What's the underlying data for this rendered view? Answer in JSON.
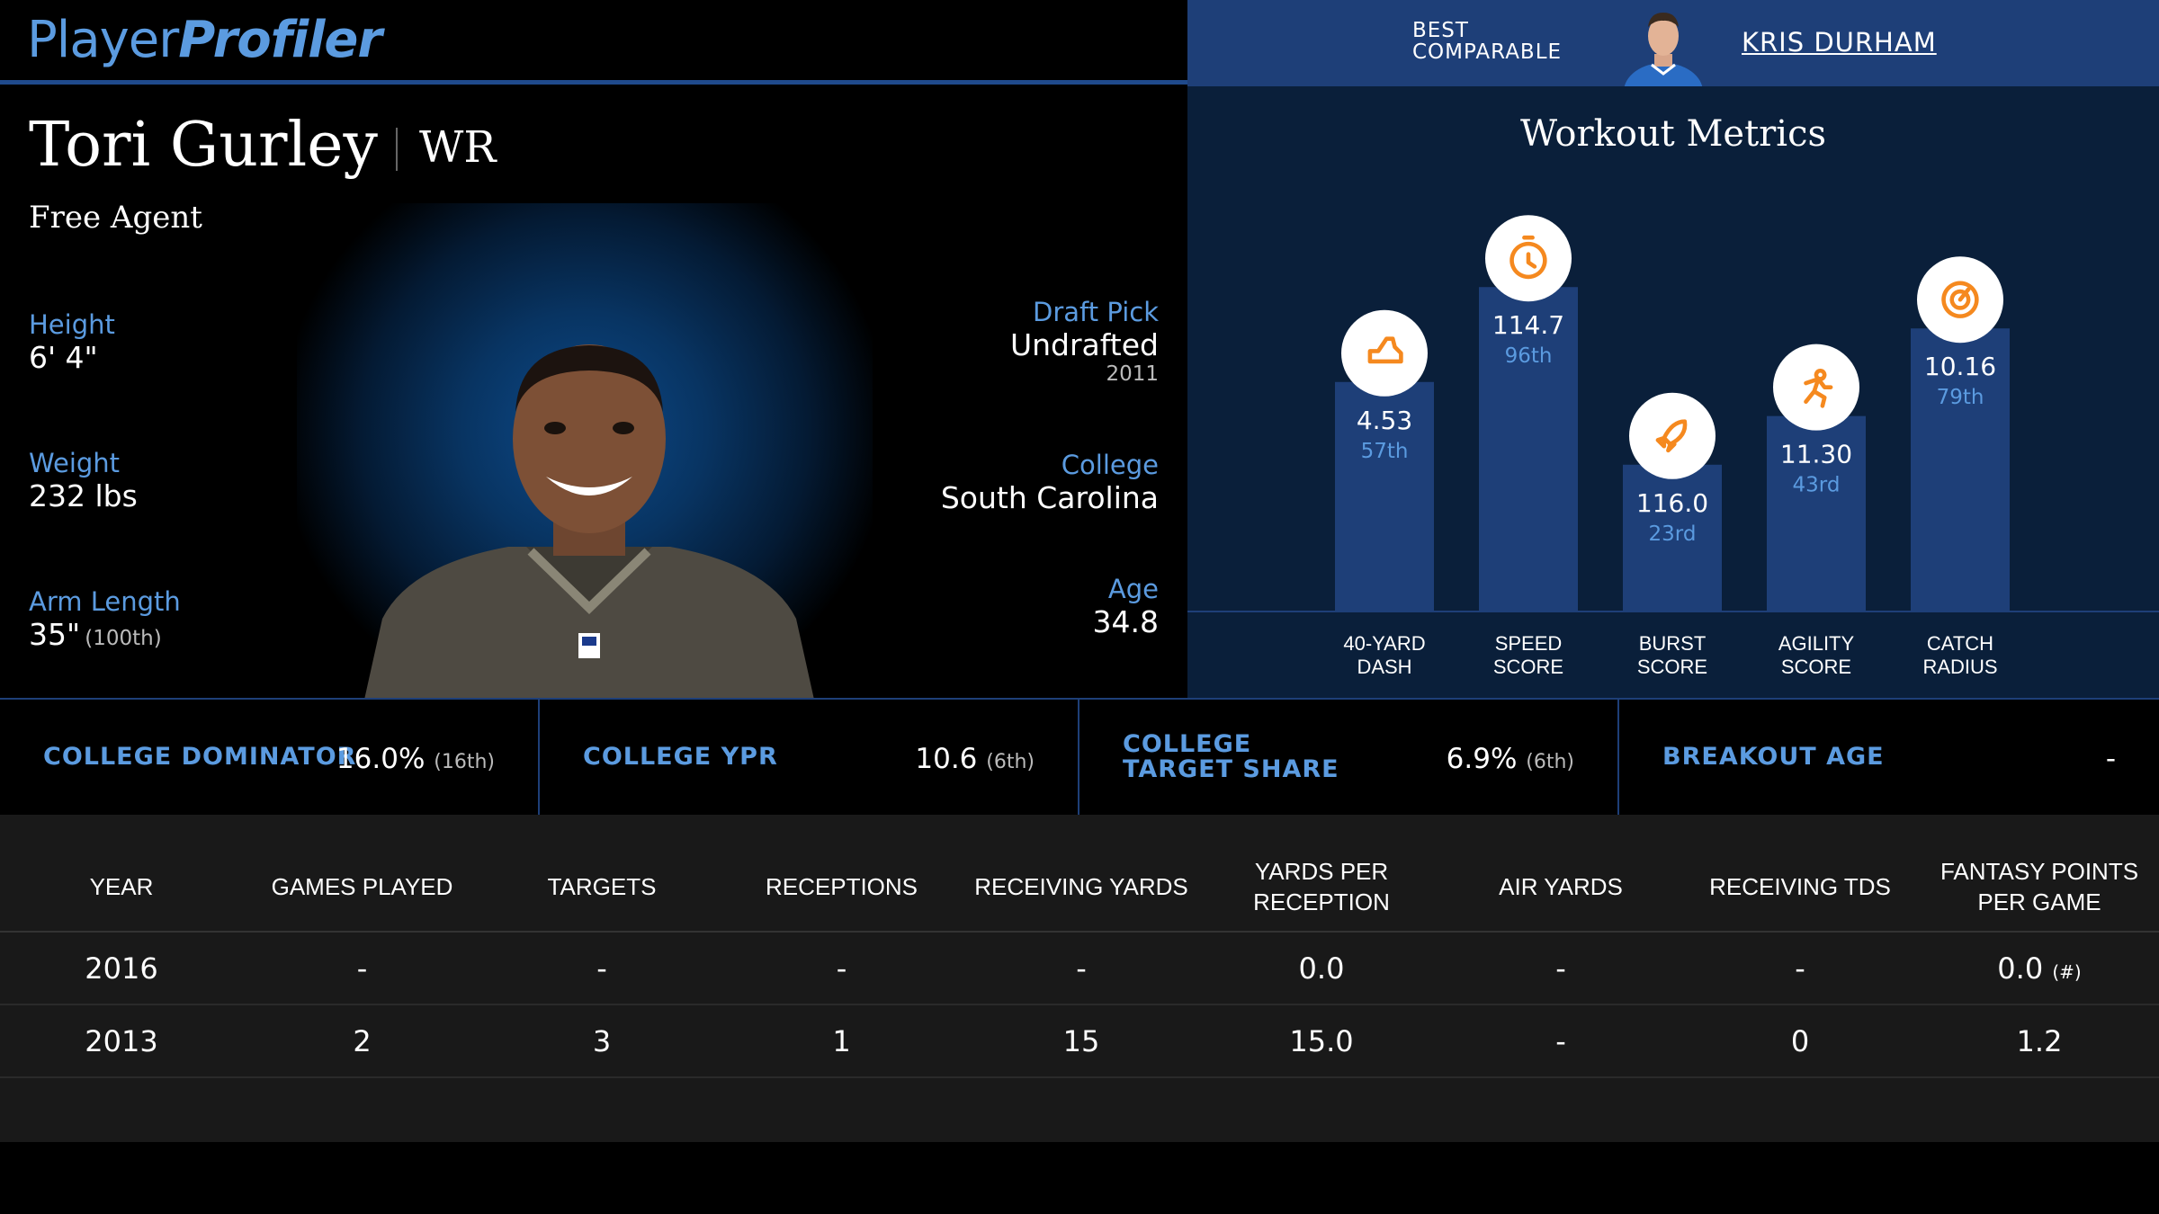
{
  "brand": {
    "logo_part1": "Player",
    "logo_part2": "Profiler"
  },
  "comparable": {
    "label_line1": "BEST",
    "label_line2": "COMPARABLE",
    "name": "KRIS DURHAM"
  },
  "player": {
    "name": "Tori Gurley",
    "position": "WR",
    "team": "Free Agent",
    "height_label": "Height",
    "height": "6' 4\"",
    "weight_label": "Weight",
    "weight": "232 lbs",
    "arm_label": "Arm Length",
    "arm": "35\"",
    "arm_rank": "(100th)",
    "draft_label": "Draft Pick",
    "draft": "Undrafted",
    "draft_year": "2011",
    "college_label": "College",
    "college": "South Carolina",
    "age_label": "Age",
    "age": "34.8"
  },
  "workout": {
    "title": "Workout Metrics",
    "accent_color": "#f5891f",
    "bar_color": "#1e3f78",
    "metrics": [
      {
        "label1": "40-YARD",
        "label2": "DASH",
        "value": "4.53",
        "rank": "57th",
        "percentile": 57,
        "icon": "shoe-icon"
      },
      {
        "label1": "SPEED",
        "label2": "SCORE",
        "value": "114.7",
        "rank": "96th",
        "percentile": 96,
        "icon": "stopwatch-icon"
      },
      {
        "label1": "BURST",
        "label2": "SCORE",
        "value": "116.0",
        "rank": "23rd",
        "percentile": 23,
        "icon": "rocket-icon"
      },
      {
        "label1": "AGILITY",
        "label2": "SCORE",
        "value": "11.30",
        "rank": "43rd",
        "percentile": 43,
        "icon": "runner-icon"
      },
      {
        "label1": "CATCH",
        "label2": "RADIUS",
        "value": "10.16",
        "rank": "79th",
        "percentile": 79,
        "icon": "target-icon"
      }
    ]
  },
  "college_stats": [
    {
      "label": "COLLEGE DOMINATOR",
      "value": "16.0%",
      "rank": "(16th)"
    },
    {
      "label": "COLLEGE YPR",
      "value": "10.6",
      "rank": "(6th)"
    },
    {
      "label": "COLLEGE TARGET SHARE",
      "value": "6.9%",
      "rank": "(6th)"
    },
    {
      "label": "BREAKOUT AGE",
      "value": "-",
      "rank": ""
    }
  ],
  "table": {
    "headers": [
      "YEAR",
      "GAMES PLAYED",
      "TARGETS",
      "RECEPTIONS",
      "RECEIVING YARDS",
      "YARDS PER RECEPTION",
      "AIR YARDS",
      "RECEIVING TDS",
      "FANTASY POINTS PER GAME"
    ],
    "rows": [
      [
        "2016",
        "-",
        "-",
        "-",
        "-",
        "0.0",
        "-",
        "-",
        "0.0"
      ],
      [
        "2013",
        "2",
        "3",
        "1",
        "15",
        "15.0",
        "-",
        "0",
        "1.2"
      ]
    ],
    "footnote": "(#)"
  }
}
